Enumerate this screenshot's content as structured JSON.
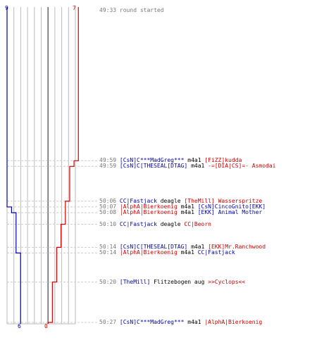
{
  "colors": {
    "blue": "#0000aa",
    "red": "#cc0000",
    "time": "#777777",
    "grid": "#bbbbbb",
    "center": "#666666",
    "dash": "#cccccc"
  },
  "scores": {
    "blue_start": "9",
    "red_start": "7",
    "blue_end": "6",
    "red_end": "0"
  },
  "events": [
    {
      "time": "49:33",
      "parts": [
        {
          "t": "round started",
          "c": "time"
        }
      ],
      "blue": 9,
      "red": 7
    },
    {
      "time": "49:59",
      "parts": [
        {
          "t": "[CsN]C***MadGreg***",
          "c": "blue"
        },
        {
          "t": " m4a1 ",
          "c": "black"
        },
        {
          "t": "[FiZZ]kudda",
          "c": "red"
        }
      ],
      "blue": 9,
      "red": 6
    },
    {
      "time": "49:59",
      "parts": [
        {
          "t": "[CsN]C[THESEAL[DTAG]",
          "c": "blue"
        },
        {
          "t": " m4a1 ",
          "c": "black"
        },
        {
          "t": "-=[DIA|CS]=- Asmodai",
          "c": "red"
        }
      ],
      "blue": 9,
      "red": 5
    },
    {
      "time": "50:06",
      "parts": [
        {
          "t": "CC|Fastjack",
          "c": "blue"
        },
        {
          "t": " deagle ",
          "c": "black"
        },
        {
          "t": "[TheMill] Wasserspritze",
          "c": "red"
        }
      ],
      "blue": 9,
      "red": 4
    },
    {
      "time": "50:07",
      "parts": [
        {
          "t": "|AlphA|Bierkoenig",
          "c": "red"
        },
        {
          "t": " m4a1 ",
          "c": "black"
        },
        {
          "t": "[CsN]CincoGnito[EKK]",
          "c": "blue"
        }
      ],
      "blue": 8,
      "red": 4
    },
    {
      "time": "50:08",
      "parts": [
        {
          "t": "|AlphA|Bierkoenig",
          "c": "red"
        },
        {
          "t": " m4a1 ",
          "c": "black"
        },
        {
          "t": "[EKK] Animal Mother",
          "c": "blue"
        }
      ],
      "blue": 7,
      "red": 4
    },
    {
      "time": "50:10",
      "parts": [
        {
          "t": "CC|Fastjack",
          "c": "blue"
        },
        {
          "t": " deagle ",
          "c": "black"
        },
        {
          "t": "CC|Beorn",
          "c": "red"
        }
      ],
      "blue": 7,
      "red": 3
    },
    {
      "time": "50:14",
      "parts": [
        {
          "t": "[CsN]C[THESEAL[DTAG]",
          "c": "blue"
        },
        {
          "t": " m4a1 ",
          "c": "black"
        },
        {
          "t": "[EKK]Mr.Ranchwood",
          "c": "red"
        }
      ],
      "blue": 7,
      "red": 2
    },
    {
      "time": "50:14",
      "parts": [
        {
          "t": "|AlphA|Bierkoenig",
          "c": "red"
        },
        {
          "t": " m4a1 ",
          "c": "black"
        },
        {
          "t": "CC|Fastjack",
          "c": "blue"
        }
      ],
      "blue": 6,
      "red": 2
    },
    {
      "time": "50:20",
      "parts": [
        {
          "t": "[TheMill]",
          "c": "blue"
        },
        {
          "t": " Flitzebogen aug ",
          "c": "black"
        },
        {
          "t": ">>Cyclops<<",
          "c": "red"
        }
      ],
      "blue": 6,
      "red": 1
    },
    {
      "time": "50:27",
      "parts": [
        {
          "t": "[CsN]C***MadGreg***",
          "c": "blue"
        },
        {
          "t": " m4a1 ",
          "c": "black"
        },
        {
          "t": "|AlphA|Bierkoenig",
          "c": "red"
        }
      ],
      "blue": 6,
      "red": 0
    }
  ]
}
